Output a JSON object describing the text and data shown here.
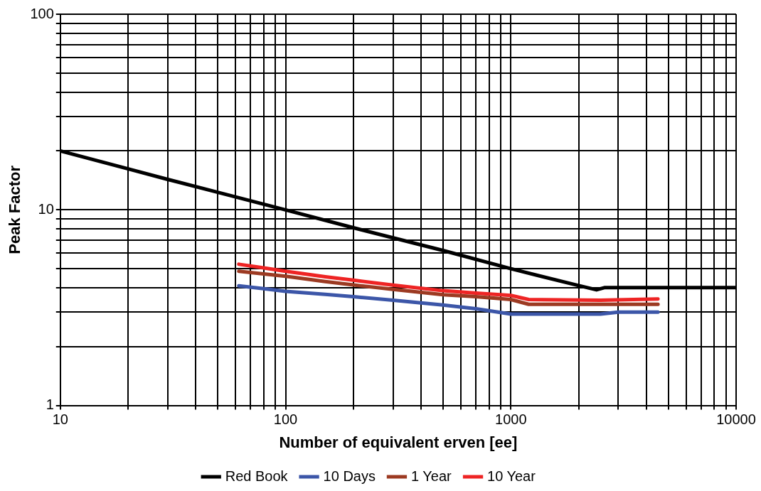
{
  "chart_data": {
    "type": "line",
    "xlabel": "Number of equivalent erven [ee]",
    "ylabel": "Peak Factor",
    "log": "xy",
    "grid": true,
    "legend": "bottom",
    "marker": "none",
    "line_style": "solid",
    "xlim": [
      10,
      10000
    ],
    "ylim": [
      1,
      100
    ],
    "xticks": [
      10,
      {
        "value": 20,
        "label": null
      },
      {
        "value": 30,
        "label": null
      },
      {
        "value": 40,
        "label": null
      },
      {
        "value": 50,
        "label": null
      },
      {
        "value": 60,
        "label": null
      },
      {
        "value": 70,
        "label": null
      },
      {
        "value": 80,
        "label": null
      },
      {
        "value": 90,
        "label": null
      },
      100,
      {
        "value": 200,
        "label": null
      },
      {
        "value": 300,
        "label": null
      },
      {
        "value": 400,
        "label": null
      },
      {
        "value": 500,
        "label": null
      },
      {
        "value": 600,
        "label": null
      },
      {
        "value": 700,
        "label": null
      },
      {
        "value": 800,
        "label": null
      },
      {
        "value": 900,
        "label": null
      },
      1000,
      {
        "value": 2000,
        "label": null
      },
      {
        "value": 3000,
        "label": null
      },
      {
        "value": 4000,
        "label": null
      },
      {
        "value": 5000,
        "label": null
      },
      {
        "value": 6000,
        "label": null
      },
      {
        "value": 7000,
        "label": null
      },
      {
        "value": 8000,
        "label": null
      },
      {
        "value": 9000,
        "label": null
      },
      10000
    ],
    "yticks": [
      1,
      {
        "value": 2,
        "label": null
      },
      {
        "value": 3,
        "label": null
      },
      {
        "value": 4,
        "label": null
      },
      {
        "value": 5,
        "label": null
      },
      {
        "value": 6,
        "label": null
      },
      {
        "value": 7,
        "label": null
      },
      {
        "value": 8,
        "label": null
      },
      {
        "value": 9,
        "label": null
      },
      10,
      {
        "value": 20,
        "label": null
      },
      {
        "value": 30,
        "label": null
      },
      {
        "value": 40,
        "label": null
      },
      {
        "value": 50,
        "label": null
      },
      {
        "value": 60,
        "label": null
      },
      {
        "value": 70,
        "label": null
      },
      {
        "value": 80,
        "label": null
      },
      {
        "value": 90,
        "label": null
      },
      100
    ],
    "series": [
      {
        "name": "Red Book",
        "color": "#000000",
        "x": [
          10,
          20,
          30,
          50,
          100,
          200,
          500,
          1000,
          2000,
          2400,
          2600,
          10000
        ],
        "values": [
          20,
          16.2,
          14.3,
          12.3,
          10,
          8.1,
          6.2,
          5.0,
          4.1,
          3.9,
          4.0,
          4.0
        ]
      },
      {
        "name": "10 Days",
        "color": "#3c56a8",
        "x": [
          62,
          80,
          100,
          150,
          200,
          300,
          500,
          700,
          1000,
          2500,
          3000,
          4500
        ],
        "values": [
          4.09,
          3.95,
          3.83,
          3.7,
          3.6,
          3.45,
          3.26,
          3.12,
          2.93,
          2.93,
          3.0,
          3.0
        ]
      },
      {
        "name": "1 Year",
        "color": "#9c3a22",
        "x": [
          62,
          80,
          100,
          150,
          200,
          300,
          500,
          700,
          1000,
          1200,
          4500
        ],
        "values": [
          4.85,
          4.7,
          4.58,
          4.3,
          4.13,
          3.92,
          3.68,
          3.6,
          3.48,
          3.29,
          3.29
        ]
      },
      {
        "name": "10 Year",
        "color": "#ee2424",
        "x": [
          62,
          80,
          100,
          150,
          200,
          300,
          500,
          700,
          1000,
          1200,
          2500,
          4500
        ],
        "values": [
          5.27,
          5.05,
          4.85,
          4.55,
          4.37,
          4.12,
          3.86,
          3.75,
          3.65,
          3.48,
          3.45,
          3.5
        ]
      }
    ]
  }
}
